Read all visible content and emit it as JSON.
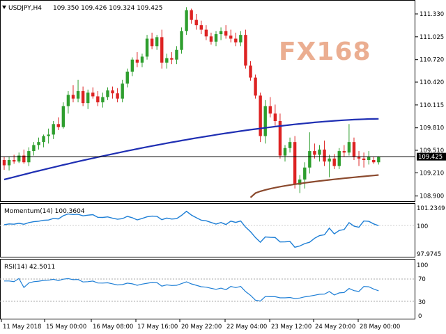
{
  "header": {
    "symbol": "USDJPY,H4",
    "ohlc": "109.350 109.426 109.324 109.425"
  },
  "watermark": "FX168",
  "price_axis": [
    "111.330",
    "111.025",
    "110.720",
    "110.420",
    "110.115",
    "109.810",
    "109.510",
    "109.210",
    "108.900"
  ],
  "current_price": "109.425",
  "momentum": {
    "label": "Momentum(14) 100.3604",
    "ticks": [
      "101.2349",
      "100",
      "97.9745"
    ]
  },
  "rsi": {
    "label": "RSI(14) 42.5011",
    "ticks": [
      "100",
      "70",
      "30",
      "0"
    ]
  },
  "time_axis": [
    "11 May 2018",
    "15 May 00:00",
    "16 May 08:00",
    "17 May 16:00",
    "20 May 22:00",
    "22 May 04:00",
    "23 May 12:00",
    "24 May 20:00",
    "28 May 00:00"
  ],
  "colors": {
    "bull": "#2e9e2e",
    "bear": "#dd2222",
    "ma_fast": "#1f2fb3",
    "ma_slow": "#8b4a2e",
    "indicator": "#1e7fd6",
    "current_price_bg": "#000000"
  },
  "chart_data": {
    "type": "candlestick",
    "price_range": [
      108.86,
      111.46
    ],
    "candles": [
      [
        109.38,
        109.42,
        109.25,
        109.31
      ],
      [
        109.31,
        109.42,
        109.24,
        109.38
      ],
      [
        109.38,
        109.45,
        109.33,
        109.36
      ],
      [
        109.36,
        109.48,
        109.34,
        109.44
      ],
      [
        109.44,
        109.52,
        109.33,
        109.35
      ],
      [
        109.35,
        109.55,
        109.3,
        109.5
      ],
      [
        109.5,
        109.62,
        109.44,
        109.58
      ],
      [
        109.58,
        109.68,
        109.52,
        109.62
      ],
      [
        109.62,
        109.72,
        109.55,
        109.7
      ],
      [
        109.7,
        109.8,
        109.6,
        109.72
      ],
      [
        109.72,
        109.9,
        109.66,
        109.86
      ],
      [
        109.86,
        109.95,
        109.78,
        109.82
      ],
      [
        109.82,
        110.15,
        109.8,
        110.1
      ],
      [
        110.1,
        110.3,
        110.0,
        110.25
      ],
      [
        110.25,
        110.38,
        110.15,
        110.2
      ],
      [
        110.2,
        110.45,
        110.15,
        110.3
      ],
      [
        110.3,
        110.36,
        110.1,
        110.14
      ],
      [
        110.14,
        110.32,
        110.06,
        110.28
      ],
      [
        110.28,
        110.35,
        110.2,
        110.23
      ],
      [
        110.23,
        110.3,
        110.1,
        110.15
      ],
      [
        110.15,
        110.28,
        110.08,
        110.22
      ],
      [
        110.22,
        110.35,
        110.18,
        110.31
      ],
      [
        110.31,
        110.36,
        110.2,
        110.27
      ],
      [
        110.27,
        110.34,
        110.15,
        110.2
      ],
      [
        110.2,
        110.45,
        110.15,
        110.4
      ],
      [
        110.4,
        110.6,
        110.35,
        110.56
      ],
      [
        110.56,
        110.75,
        110.5,
        110.72
      ],
      [
        110.72,
        110.82,
        110.62,
        110.68
      ],
      [
        110.68,
        110.8,
        110.62,
        110.76
      ],
      [
        110.76,
        111.05,
        110.72,
        111.0
      ],
      [
        111.0,
        111.08,
        110.86,
        110.9
      ],
      [
        110.9,
        111.05,
        110.85,
        111.02
      ],
      [
        111.02,
        111.12,
        110.6,
        110.68
      ],
      [
        110.68,
        110.8,
        110.6,
        110.74
      ],
      [
        110.74,
        110.82,
        110.66,
        110.72
      ],
      [
        110.72,
        110.9,
        110.66,
        110.85
      ],
      [
        110.85,
        111.15,
        110.8,
        111.1
      ],
      [
        111.1,
        111.42,
        111.05,
        111.38
      ],
      [
        111.38,
        111.4,
        111.2,
        111.25
      ],
      [
        111.25,
        111.33,
        111.12,
        111.18
      ],
      [
        111.18,
        111.24,
        111.06,
        111.12
      ],
      [
        111.12,
        111.18,
        110.98,
        111.03
      ],
      [
        111.03,
        111.08,
        110.92,
        110.96
      ],
      [
        110.96,
        111.1,
        110.9,
        111.06
      ],
      [
        111.06,
        111.15,
        110.98,
        111.1
      ],
      [
        111.1,
        111.18,
        111.0,
        111.04
      ],
      [
        111.04,
        111.12,
        110.95,
        111.0
      ],
      [
        111.0,
        111.08,
        110.9,
        110.95
      ],
      [
        110.95,
        111.1,
        110.9,
        111.05
      ],
      [
        111.05,
        111.12,
        110.6,
        110.64
      ],
      [
        110.64,
        110.7,
        110.44,
        110.48
      ],
      [
        110.48,
        110.52,
        110.2,
        110.24
      ],
      [
        110.24,
        110.28,
        109.62,
        109.7
      ],
      [
        109.7,
        110.18,
        109.6,
        110.1
      ],
      [
        110.1,
        110.22,
        109.95,
        110.0
      ],
      [
        110.0,
        110.12,
        109.84,
        109.9
      ],
      [
        109.9,
        110.0,
        109.4,
        109.44
      ],
      [
        109.44,
        109.58,
        109.36,
        109.54
      ],
      [
        109.54,
        109.68,
        109.48,
        109.62
      ],
      [
        109.62,
        109.7,
        109.0,
        109.05
      ],
      [
        109.05,
        109.18,
        108.94,
        109.12
      ],
      [
        109.12,
        109.35,
        109.0,
        109.28
      ],
      [
        109.28,
        109.75,
        109.2,
        109.5
      ],
      [
        109.5,
        109.6,
        109.4,
        109.45
      ],
      [
        109.45,
        109.58,
        109.36,
        109.52
      ],
      [
        109.52,
        109.64,
        109.3,
        109.36
      ],
      [
        109.36,
        109.45,
        109.15,
        109.4
      ],
      [
        109.4,
        109.46,
        109.26,
        109.3
      ],
      [
        109.3,
        109.54,
        109.26,
        109.5
      ],
      [
        109.5,
        109.58,
        109.42,
        109.48
      ],
      [
        109.48,
        109.86,
        109.44,
        109.62
      ],
      [
        109.62,
        109.68,
        109.38,
        109.42
      ],
      [
        109.42,
        109.5,
        109.3,
        109.4
      ],
      [
        109.4,
        109.48,
        109.28,
        109.38
      ],
      [
        109.38,
        109.5,
        109.32,
        109.42
      ],
      [
        109.38,
        109.42,
        109.33,
        109.35
      ],
      [
        109.35,
        109.43,
        109.32,
        109.42
      ]
    ],
    "ma_fast": {
      "start": 109.12,
      "end": 109.93
    },
    "ma_slow": {
      "start": 108.88,
      "end": 109.18
    },
    "momentum_range": [
      97.5,
      101.5
    ],
    "rsi_range": [
      0,
      100
    ]
  }
}
